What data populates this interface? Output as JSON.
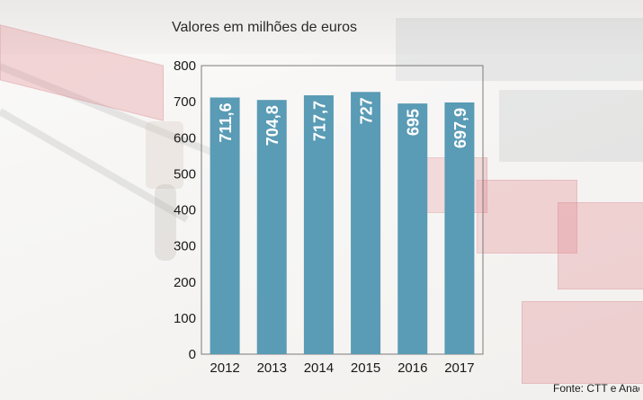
{
  "chart_data": {
    "type": "bar",
    "title": "Valores em milhões de euros",
    "categories": [
      "2012",
      "2013",
      "2014",
      "2015",
      "2016",
      "2017"
    ],
    "values": [
      711.6,
      704.8,
      717.7,
      727,
      695,
      697.9
    ],
    "value_labels": [
      "711,6",
      "704,8",
      "717,7",
      "727",
      "695",
      "697,9"
    ],
    "yticks": [
      0,
      100,
      200,
      300,
      400,
      500,
      600,
      700,
      800
    ],
    "ylim": [
      0,
      800
    ],
    "xlabel": "",
    "ylabel": "",
    "grid": false,
    "bar_color": "#5a9bb5",
    "source": "Fonte: CTT e Anacom"
  }
}
